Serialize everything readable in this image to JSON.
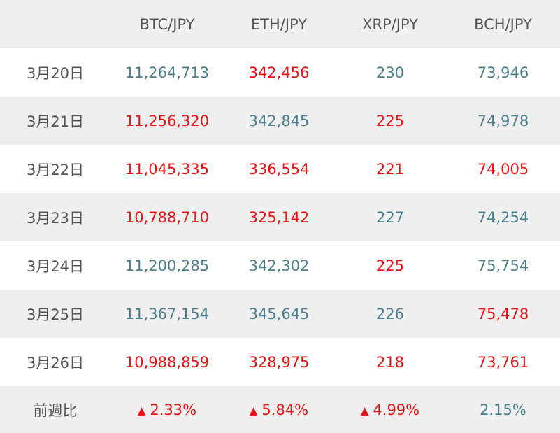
{
  "table": {
    "headers": [
      "",
      "BTC/JPY",
      "ETH/JPY",
      "XRP/JPY",
      "BCH/JPY"
    ],
    "rows": [
      {
        "date": "3月20日",
        "cells": [
          {
            "value": "11,264,713",
            "color": "teal"
          },
          {
            "value": "342,456",
            "color": "red"
          },
          {
            "value": "230",
            "color": "teal"
          },
          {
            "value": "73,946",
            "color": "teal"
          }
        ]
      },
      {
        "date": "3月21日",
        "cells": [
          {
            "value": "11,256,320",
            "color": "red"
          },
          {
            "value": "342,845",
            "color": "teal"
          },
          {
            "value": "225",
            "color": "red"
          },
          {
            "value": "74,978",
            "color": "teal"
          }
        ]
      },
      {
        "date": "3月22日",
        "cells": [
          {
            "value": "11,045,335",
            "color": "red"
          },
          {
            "value": "336,554",
            "color": "red"
          },
          {
            "value": "221",
            "color": "red"
          },
          {
            "value": "74,005",
            "color": "red"
          }
        ]
      },
      {
        "date": "3月23日",
        "cells": [
          {
            "value": "10,788,710",
            "color": "red"
          },
          {
            "value": "325,142",
            "color": "red"
          },
          {
            "value": "227",
            "color": "teal"
          },
          {
            "value": "74,254",
            "color": "teal"
          }
        ]
      },
      {
        "date": "3月24日",
        "cells": [
          {
            "value": "11,200,285",
            "color": "teal"
          },
          {
            "value": "342,302",
            "color": "teal"
          },
          {
            "value": "225",
            "color": "red"
          },
          {
            "value": "75,754",
            "color": "teal"
          }
        ]
      },
      {
        "date": "3月25日",
        "cells": [
          {
            "value": "11,367,154",
            "color": "teal"
          },
          {
            "value": "345,645",
            "color": "teal"
          },
          {
            "value": "226",
            "color": "teal"
          },
          {
            "value": "75,478",
            "color": "red"
          }
        ]
      },
      {
        "date": "3月26日",
        "cells": [
          {
            "value": "10,988,859",
            "color": "red"
          },
          {
            "value": "328,975",
            "color": "red"
          },
          {
            "value": "218",
            "color": "red"
          },
          {
            "value": "73,761",
            "color": "red"
          }
        ]
      }
    ],
    "footer": {
      "label": "前週比",
      "cells": [
        {
          "marker": "▲",
          "value": "2.33%",
          "color": "red"
        },
        {
          "marker": "▲",
          "value": "5.84%",
          "color": "red"
        },
        {
          "marker": "▲",
          "value": "4.99%",
          "color": "red"
        },
        {
          "marker": "",
          "value": "2.15%",
          "color": "teal"
        }
      ]
    }
  },
  "colors": {
    "teal": "#4a7f8c",
    "red": "#ee1111",
    "header_bg": "#efefef",
    "text_gray": "#555555"
  },
  "icons": {
    "down_marker": "triangle-up-icon"
  }
}
